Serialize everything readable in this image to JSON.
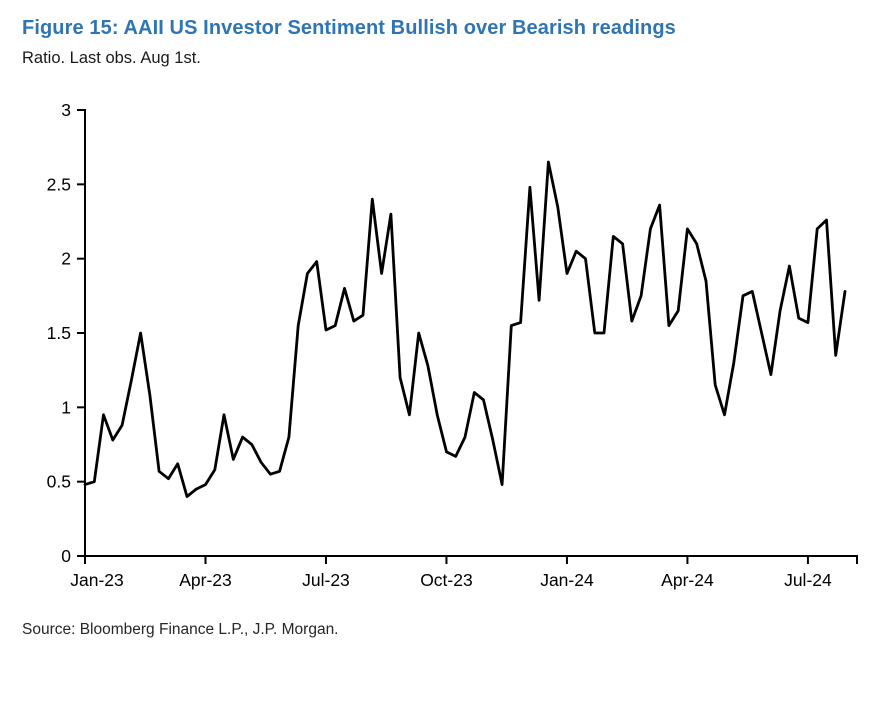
{
  "figure": {
    "title": "Figure 15: AAII US Investor Sentiment Bullish over Bearish readings",
    "subtitle": "Ratio. Last obs. Aug 1st.",
    "source": "Source: Bloomberg Finance L.P., J.P. Morgan."
  },
  "colors": {
    "title": "#2E75B6",
    "line": "#000000",
    "axis": "#000000",
    "tick_text": "#000000",
    "source_text": "#262626"
  },
  "chart_data": {
    "type": "line",
    "title": "AAII US Investor Sentiment Bullish over Bearish readings",
    "subtitle": "Ratio. Last obs. Aug 1st.",
    "x_unit": "weekly observations",
    "xlabel": "",
    "ylabel": "",
    "ylim": [
      0,
      3
    ],
    "yticks": [
      0,
      0.5,
      1,
      1.5,
      2,
      2.5,
      3
    ],
    "ytick_labels": [
      "0",
      "0.5",
      "1",
      "1.5",
      "2",
      "2.5",
      "3"
    ],
    "xtick_labels": [
      "Jan-23",
      "Apr-23",
      "Jul-23",
      "Oct-23",
      "Jan-24",
      "Apr-24",
      "Jul-24"
    ],
    "xtick_indices": [
      0,
      13,
      26,
      39,
      52,
      65,
      78
    ],
    "grid": false,
    "legend": "none",
    "series": [
      {
        "name": "Bullish over Bearish ratio",
        "values": [
          0.48,
          0.5,
          0.95,
          0.78,
          0.88,
          1.18,
          1.5,
          1.08,
          0.57,
          0.52,
          0.62,
          0.4,
          0.45,
          0.48,
          0.58,
          0.95,
          0.65,
          0.8,
          0.75,
          0.63,
          0.55,
          0.57,
          0.8,
          1.55,
          1.9,
          1.98,
          1.52,
          1.55,
          1.8,
          1.58,
          1.62,
          2.4,
          1.9,
          2.3,
          1.2,
          0.95,
          1.5,
          1.28,
          0.95,
          0.7,
          0.67,
          0.8,
          1.1,
          1.05,
          0.78,
          0.48,
          1.55,
          1.57,
          2.48,
          1.72,
          2.65,
          2.35,
          1.9,
          2.05,
          2.0,
          1.5,
          1.5,
          2.15,
          2.1,
          1.58,
          1.75,
          2.2,
          2.36,
          1.55,
          1.65,
          2.2,
          2.1,
          1.85,
          1.15,
          0.95,
          1.3,
          1.75,
          1.78,
          1.5,
          1.22,
          1.65,
          1.95,
          1.6,
          1.57,
          2.2,
          2.26,
          1.35,
          1.78
        ]
      }
    ]
  }
}
